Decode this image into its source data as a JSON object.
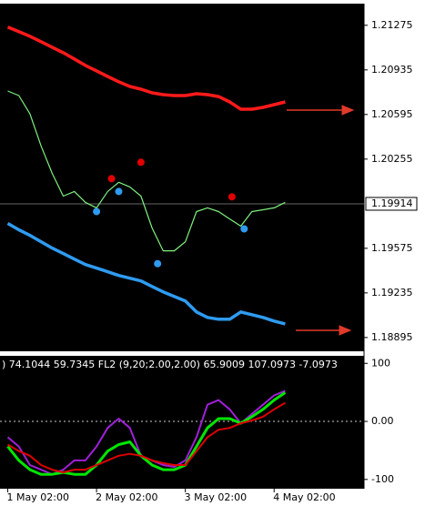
{
  "chart_data": [
    {
      "type": "line",
      "x": [
        0,
        1,
        2,
        3,
        4,
        5,
        6,
        7,
        8,
        9,
        10,
        11,
        12,
        13,
        14,
        15,
        16,
        17,
        18,
        19,
        20,
        21,
        22,
        23,
        24,
        25
      ],
      "xlim": [
        -0.7,
        32.1
      ],
      "ylim": [
        1.1879,
        1.2144
      ],
      "yticks": [
        1.21275,
        1.20935,
        1.20595,
        1.20255,
        1.19575,
        1.19235,
        1.18895
      ],
      "current_price": 1.19914,
      "series": [
        {
          "color": "#ff1a1a",
          "width": 3.5,
          "values": [
            1.21261,
            1.21226,
            1.21191,
            1.2115,
            1.21108,
            1.21066,
            1.21018,
            1.20969,
            1.20927,
            1.20885,
            1.20844,
            1.20809,
            1.20788,
            1.2076,
            1.20746,
            1.20739,
            1.20739,
            1.20753,
            1.20746,
            1.20732,
            1.20691,
            1.20635,
            1.20635,
            1.20649,
            1.2067,
            1.20691
          ]
        },
        {
          "color": "#2f9bf0",
          "width": 3.5,
          "values": [
            1.19765,
            1.19716,
            1.19674,
            1.19625,
            1.19577,
            1.19535,
            1.19493,
            1.19451,
            1.19424,
            1.19396,
            1.19368,
            1.19347,
            1.19326,
            1.19284,
            1.19243,
            1.19208,
            1.19173,
            1.1909,
            1.19048,
            1.19034,
            1.19034,
            1.1909,
            1.19069,
            1.19048,
            1.1902,
            1.18999
          ]
        },
        {
          "color": "#7ff07f",
          "width": 1.2,
          "values": [
            1.20774,
            1.20739,
            1.206,
            1.20356,
            1.20147,
            1.19973,
            1.20008,
            1.19925,
            1.19883,
            1.20008,
            1.20078,
            1.20043,
            1.19973,
            1.1973,
            1.19556,
            1.19556,
            1.19625,
            1.19855,
            1.19883,
            1.19855,
            1.19799,
            1.19744,
            1.19855,
            1.19869,
            1.19883,
            1.19925
          ]
        }
      ],
      "points": [
        {
          "color": "#e00000",
          "x": [
            9.35,
            12.0,
            20.2
          ],
          "values": [
            1.20106,
            1.20231,
            1.19967
          ]
        },
        {
          "color": "#2f9bf0",
          "x": [
            8.0,
            10.0,
            13.5,
            21.3
          ],
          "values": [
            1.19855,
            1.20008,
            1.19458,
            1.19723
          ]
        }
      ]
    },
    {
      "type": "line",
      "subtitle": ") 74.1044 59.7345  FL2 (9,20;2.00,2.00) 65.9009 107.0973 -7.0973",
      "x": [
        0,
        1,
        2,
        3,
        4,
        5,
        6,
        7,
        8,
        9,
        10,
        11,
        12,
        13,
        14,
        15,
        16,
        17,
        18,
        19,
        20,
        21,
        22,
        23,
        24,
        25
      ],
      "xlim": [
        -0.7,
        32.1
      ],
      "xticks": [
        {
          "value": 0,
          "label": "1 May 02:00"
        },
        {
          "value": 8,
          "label": "2 May 02:00"
        },
        {
          "value": 16,
          "label": "3 May 02:00"
        },
        {
          "value": 24,
          "label": "4 May 02:00"
        }
      ],
      "ylim": [
        -116,
        113
      ],
      "yticks": [
        100,
        {
          "value": 0,
          "label": "0.00"
        },
        -100
      ],
      "series": [
        {
          "color": "#a020d8",
          "width": 2,
          "values": [
            -27.2,
            -43.2,
            -75.2,
            -83.2,
            -91.2,
            -83.2,
            -67.2,
            -67.2,
            -43.2,
            -11.2,
            4.8,
            -11.2,
            -59.2,
            -67.2,
            -75.2,
            -78.4,
            -67.2,
            -27.2,
            28.8,
            36.8,
            20.8,
            -3.2,
            12.8,
            28.8,
            44.8,
            52.8
          ]
        },
        {
          "color": "#00e600",
          "width": 3,
          "values": [
            -43.2,
            -67.2,
            -83.2,
            -91.2,
            -91.2,
            -88,
            -91.2,
            -91.2,
            -75.2,
            -51.2,
            -40,
            -35.2,
            -59.2,
            -75.2,
            -83.2,
            -83.2,
            -75.2,
            -43.2,
            -11.2,
            4.8,
            4.8,
            -3.2,
            8,
            20.8,
            36.8,
            49.6
          ]
        },
        {
          "color": "#e00000",
          "width": 2,
          "values": [
            -40,
            -51.2,
            -59.2,
            -75.2,
            -83.2,
            -88,
            -83.2,
            -83.2,
            -75.2,
            -67.2,
            -59.2,
            -56,
            -59.2,
            -67.2,
            -72,
            -75.2,
            -75.2,
            -51.2,
            -27.2,
            -14.4,
            -11.2,
            -3.2,
            1.6,
            8,
            20.8,
            32
          ]
        }
      ]
    }
  ]
}
